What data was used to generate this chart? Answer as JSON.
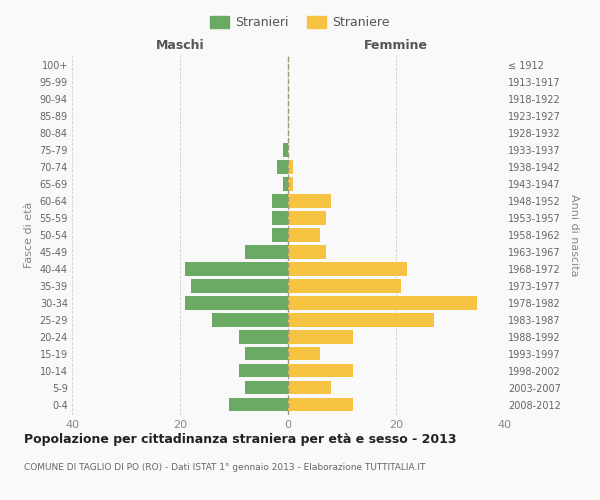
{
  "age_groups": [
    "0-4",
    "5-9",
    "10-14",
    "15-19",
    "20-24",
    "25-29",
    "30-34",
    "35-39",
    "40-44",
    "45-49",
    "50-54",
    "55-59",
    "60-64",
    "65-69",
    "70-74",
    "75-79",
    "80-84",
    "85-89",
    "90-94",
    "95-99",
    "100+"
  ],
  "birth_years": [
    "2008-2012",
    "2003-2007",
    "1998-2002",
    "1993-1997",
    "1988-1992",
    "1983-1987",
    "1978-1982",
    "1973-1977",
    "1968-1972",
    "1963-1967",
    "1958-1962",
    "1953-1957",
    "1948-1952",
    "1943-1947",
    "1938-1942",
    "1933-1937",
    "1928-1932",
    "1923-1927",
    "1918-1922",
    "1913-1917",
    "≤ 1912"
  ],
  "maschi": [
    11,
    8,
    9,
    8,
    9,
    14,
    19,
    18,
    19,
    8,
    3,
    3,
    3,
    1,
    2,
    1,
    0,
    0,
    0,
    0,
    0
  ],
  "femmine": [
    12,
    8,
    12,
    6,
    12,
    27,
    35,
    21,
    22,
    7,
    6,
    7,
    8,
    1,
    1,
    0,
    0,
    0,
    0,
    0,
    0
  ],
  "color_maschi": "#6aaa64",
  "color_femmine": "#f5c242",
  "title": "Popolazione per cittadinanza straniera per età e sesso - 2013",
  "subtitle": "COMUNE DI TAGLIO DI PO (RO) - Dati ISTAT 1° gennaio 2013 - Elaborazione TUTTITALIA.IT",
  "label_maschi": "Stranieri",
  "label_femmine": "Straniere",
  "header_left": "Maschi",
  "header_right": "Femmine",
  "ylabel_left": "Fasce di età",
  "ylabel_right": "Anni di nascita",
  "xlim": 40,
  "background_color": "#f9f9f9",
  "grid_color": "#d0d0d0"
}
